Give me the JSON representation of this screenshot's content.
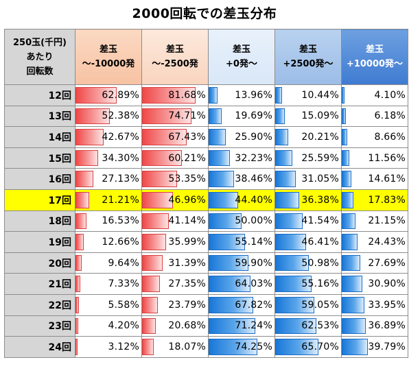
{
  "title": "2000回転での差玉分布",
  "header": {
    "label_lines": [
      "250玉(千円)",
      "あたり",
      "回転数"
    ],
    "columns": [
      {
        "line1": "差玉",
        "line2": "～-10000発"
      },
      {
        "line1": "差玉",
        "line2": "～-2500発"
      },
      {
        "line1": "差玉",
        "line2": "+0発～"
      },
      {
        "line1": "差玉",
        "line2": "+2500発～"
      },
      {
        "line1": "差玉",
        "line2": "+10000発～"
      }
    ]
  },
  "colors": {
    "highlight_row": "#ffff00",
    "negative_bar": "#f04848",
    "positive_bar": "#1877d8"
  },
  "highlight_row_label": "17回",
  "rows": [
    {
      "label": "12回",
      "values": [
        62.89,
        81.68,
        13.96,
        10.44,
        4.1
      ],
      "text": [
        "62.89%",
        "81.68%",
        "13.96%",
        "10.44%",
        "4.10%"
      ]
    },
    {
      "label": "13回",
      "values": [
        52.38,
        74.71,
        19.69,
        15.09,
        6.18
      ],
      "text": [
        "52.38%",
        "74.71%",
        "19.69%",
        "15.09%",
        "6.18%"
      ]
    },
    {
      "label": "14回",
      "values": [
        42.67,
        67.43,
        25.9,
        20.21,
        8.66
      ],
      "text": [
        "42.67%",
        "67.43%",
        "25.90%",
        "20.21%",
        "8.66%"
      ]
    },
    {
      "label": "15回",
      "values": [
        34.3,
        60.21,
        32.23,
        25.59,
        11.56
      ],
      "text": [
        "34.30%",
        "60.21%",
        "32.23%",
        "25.59%",
        "11.56%"
      ]
    },
    {
      "label": "16回",
      "values": [
        27.13,
        53.35,
        38.46,
        31.05,
        14.61
      ],
      "text": [
        "27.13%",
        "53.35%",
        "38.46%",
        "31.05%",
        "14.61%"
      ]
    },
    {
      "label": "17回",
      "values": [
        21.21,
        46.96,
        44.4,
        36.38,
        17.83
      ],
      "text": [
        "21.21%",
        "46.96%",
        "44.40%",
        "36.38%",
        "17.83%"
      ]
    },
    {
      "label": "18回",
      "values": [
        16.53,
        41.14,
        50.0,
        41.54,
        21.15
      ],
      "text": [
        "16.53%",
        "41.14%",
        "50.00%",
        "41.54%",
        "21.15%"
      ]
    },
    {
      "label": "19回",
      "values": [
        12.66,
        35.99,
        55.14,
        46.41,
        24.43
      ],
      "text": [
        "12.66%",
        "35.99%",
        "55.14%",
        "46.41%",
        "24.43%"
      ]
    },
    {
      "label": "20回",
      "values": [
        9.64,
        31.39,
        59.9,
        50.98,
        27.69
      ],
      "text": [
        "9.64%",
        "31.39%",
        "59.90%",
        "50.98%",
        "27.69%"
      ]
    },
    {
      "label": "21回",
      "values": [
        7.33,
        27.35,
        64.03,
        55.16,
        30.9
      ],
      "text": [
        "7.33%",
        "27.35%",
        "64.03%",
        "55.16%",
        "30.90%"
      ]
    },
    {
      "label": "22回",
      "values": [
        5.58,
        23.79,
        67.82,
        59.05,
        33.95
      ],
      "text": [
        "5.58%",
        "23.79%",
        "67.82%",
        "59.05%",
        "33.95%"
      ]
    },
    {
      "label": "23回",
      "values": [
        4.2,
        20.68,
        71.24,
        62.53,
        36.89
      ],
      "text": [
        "4.20%",
        "20.68%",
        "71.24%",
        "62.53%",
        "36.89%"
      ]
    },
    {
      "label": "24回",
      "values": [
        3.12,
        18.07,
        74.25,
        65.7,
        39.79
      ],
      "text": [
        "3.12%",
        "18.07%",
        "74.25%",
        "65.70%",
        "39.79%"
      ]
    }
  ]
}
